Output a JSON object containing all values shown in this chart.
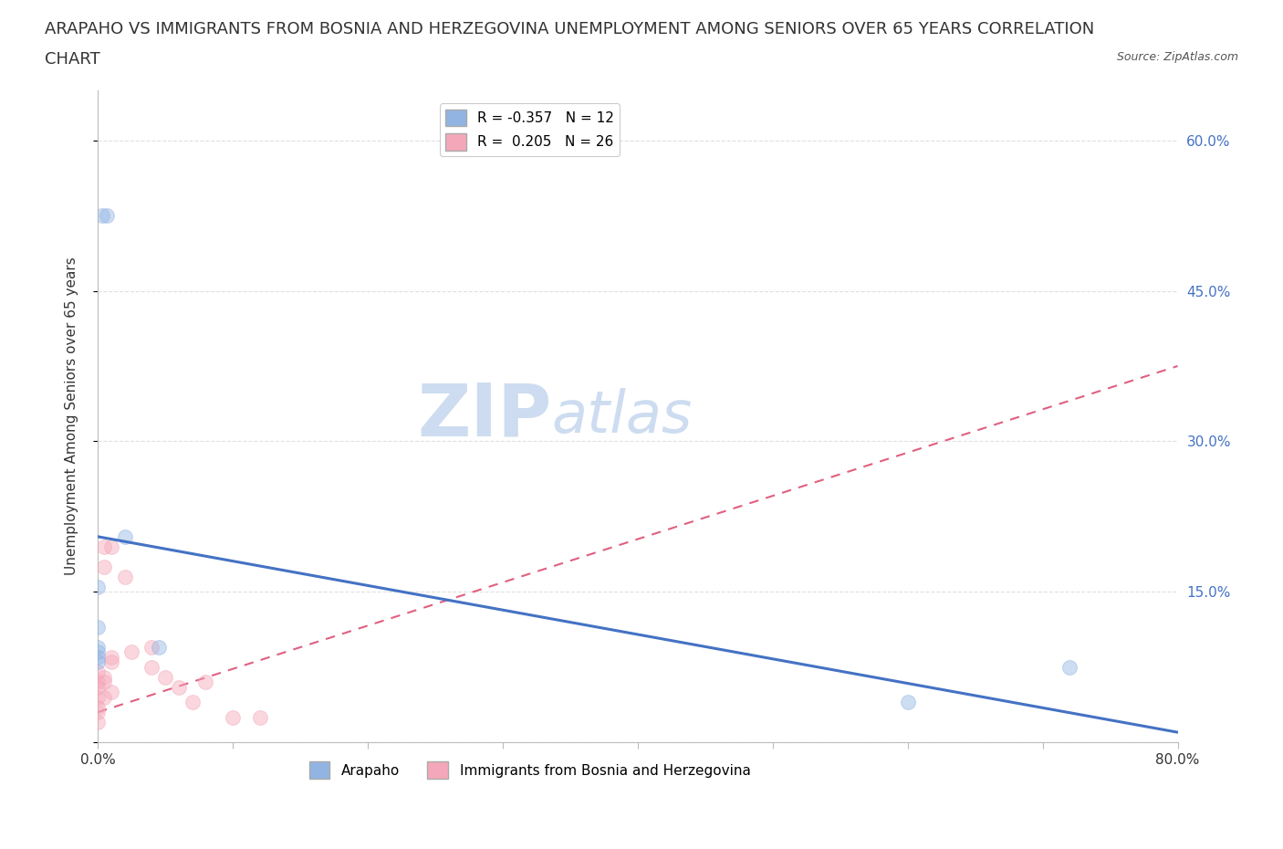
{
  "title_line1": "ARAPAHO VS IMMIGRANTS FROM BOSNIA AND HERZEGOVINA UNEMPLOYMENT AMONG SENIORS OVER 65 YEARS CORRELATION",
  "title_line2": "CHART",
  "source": "Source: ZipAtlas.com",
  "ylabel": "Unemployment Among Seniors over 65 years",
  "xlim": [
    0.0,
    0.8
  ],
  "ylim": [
    0.0,
    0.65
  ],
  "xticks": [
    0.0,
    0.1,
    0.2,
    0.3,
    0.4,
    0.5,
    0.6,
    0.7,
    0.8
  ],
  "ytick_right_labels": [
    "60.0%",
    "45.0%",
    "30.0%",
    "15.0%",
    ""
  ],
  "ytick_right_values": [
    0.6,
    0.45,
    0.3,
    0.15,
    0.0
  ],
  "legend_r_arapaho": "-0.357",
  "legend_n_arapaho": "12",
  "legend_r_bosnia": "0.205",
  "legend_n_bosnia": "26",
  "arapaho_color": "#92b4e3",
  "bosnia_color": "#f4a7b9",
  "arapaho_line_color": "#4472c4",
  "bosnia_line_color": "#e06080",
  "watermark_zip": "ZIP",
  "watermark_atlas": "atlas",
  "watermark_color": "#cddcf0",
  "arapaho_points_x": [
    0.003,
    0.007,
    0.0,
    0.0,
    0.02,
    0.045,
    0.0,
    0.0,
    0.6,
    0.72,
    0.0,
    0.0
  ],
  "arapaho_points_y": [
    0.525,
    0.525,
    0.155,
    0.095,
    0.205,
    0.095,
    0.115,
    0.085,
    0.04,
    0.075,
    0.08,
    0.09
  ],
  "bosnia_points_x": [
    0.0,
    0.005,
    0.01,
    0.005,
    0.01,
    0.02,
    0.01,
    0.005,
    0.0,
    0.005,
    0.0,
    0.005,
    0.01,
    0.025,
    0.04,
    0.04,
    0.05,
    0.06,
    0.07,
    0.08,
    0.1,
    0.12,
    0.0,
    0.0,
    0.0,
    0.0
  ],
  "bosnia_points_y": [
    0.07,
    0.195,
    0.195,
    0.175,
    0.085,
    0.165,
    0.08,
    0.065,
    0.06,
    0.06,
    0.055,
    0.045,
    0.05,
    0.09,
    0.095,
    0.075,
    0.065,
    0.055,
    0.04,
    0.06,
    0.025,
    0.025,
    0.045,
    0.035,
    0.03,
    0.02
  ],
  "arapaho_trend_x": [
    0.0,
    0.8
  ],
  "arapaho_trend_y": [
    0.205,
    0.01
  ],
  "bosnia_trend_x": [
    0.0,
    0.8
  ],
  "bosnia_trend_y": [
    0.03,
    0.375
  ],
  "background_color": "#ffffff",
  "grid_color": "#dddddd",
  "title_fontsize": 13,
  "axis_label_fontsize": 11,
  "tick_fontsize": 11,
  "legend_fontsize": 11,
  "marker_size": 130,
  "marker_alpha": 0.45,
  "marker_linewidth": 0.8
}
